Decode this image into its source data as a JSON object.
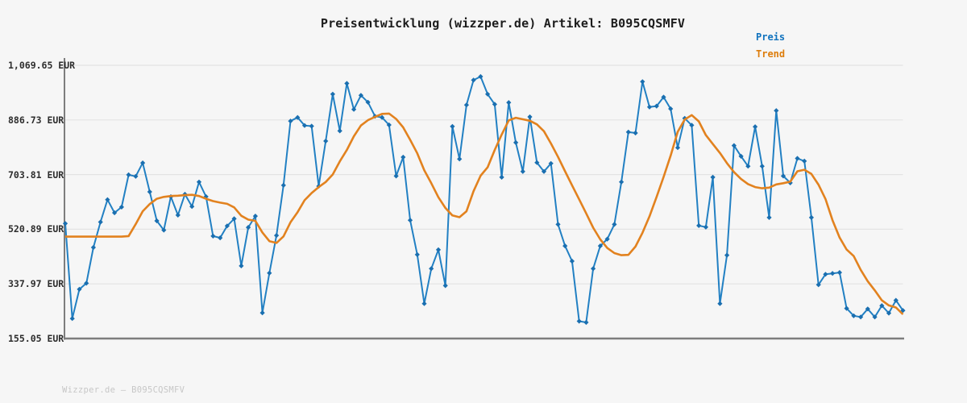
{
  "title": "Preisentwicklung (wizzper.de) Artikel: B095CQSMFV",
  "legend": {
    "preis": "Preis",
    "trend": "Trend"
  },
  "footer": "Wizzper.de — B095CQSMFV",
  "colors": {
    "background": "#f6f6f6",
    "price_line": "#2280c3",
    "price_marker": "#1a6fb0",
    "trend_line": "#e2821f",
    "legend_preis": "#1173be",
    "legend_trend": "#dd7d0c",
    "axis": "#7d7d7d",
    "gridline": "#e3e3e3",
    "title_text": "#1c1c1c",
    "ylabel_text": "#2d2d2d",
    "footer_text": "#c7c7c7"
  },
  "chart_data": {
    "type": "line",
    "title": "Preisentwicklung (wizzper.de) Artikel: B095CQSMFV",
    "currency": "EUR",
    "grid": "horizontal",
    "legend_position": "top-right",
    "x_axis": {
      "tick_labels_visible": false,
      "num_points": 120
    },
    "y_axis": {
      "unit": "EUR",
      "range": [
        155.05,
        1069.65
      ],
      "tick_values": [
        1069.65,
        886.73,
        703.81,
        520.89,
        337.97,
        155.05
      ],
      "tick_labels": [
        "1,069.65 EUR",
        "886.73 EUR",
        "703.81 EUR",
        "520.89 EUR",
        "337.97 EUR",
        "155.05 EUR"
      ]
    },
    "series": [
      {
        "name": "Preis",
        "color": "#2280c3",
        "marker": "diamond",
        "values": [
          540,
          222,
          320,
          340,
          460,
          545,
          620,
          576,
          595,
          703,
          698,
          743,
          646,
          549,
          518,
          630,
          568,
          638,
          597,
          679,
          630,
          498,
          492,
          532,
          556,
          398,
          527,
          565,
          241,
          374,
          500,
          668,
          883,
          895,
          868,
          866,
          665,
          816,
          973,
          850,
          1009,
          922,
          969,
          946,
          899,
          895,
          870,
          699,
          762,
          551,
          436,
          272,
          389,
          452,
          332,
          865,
          756,
          937,
          1020,
          1032,
          973,
          939,
          695,
          945,
          811,
          714,
          897,
          744,
          714,
          741,
          537,
          465,
          414,
          213,
          209,
          389,
          465,
          488,
          537,
          679,
          846,
          843,
          1015,
          930,
          933,
          963,
          924,
          794,
          892,
          869,
          533,
          528,
          695,
          272,
          434,
          801,
          765,
          732,
          864,
          732,
          560,
          918,
          699,
          676,
          758,
          749,
          560,
          335,
          370,
          373,
          376,
          256,
          231,
          227,
          254,
          227,
          265,
          240,
          283,
          249
        ]
      },
      {
        "name": "Trend",
        "color": "#e2821f",
        "marker": "none",
        "values": [
          496,
          496,
          496,
          496,
          496,
          496,
          496,
          496,
          496,
          498,
          538,
          581,
          605,
          623,
          629,
          632,
          633,
          635,
          636,
          632,
          623,
          615,
          610,
          606,
          594,
          566,
          553,
          549,
          510,
          481,
          475,
          497,
          544,
          578,
          618,
          642,
          662,
          679,
          704,
          748,
          786,
          832,
          868,
          886,
          897,
          907,
          908,
          890,
          862,
          820,
          775,
          718,
          675,
          628,
          592,
          567,
          561,
          581,
          648,
          700,
          728,
          786,
          838,
          885,
          894,
          889,
          884,
          872,
          849,
          808,
          763,
          715,
          668,
          621,
          574,
          526,
          487,
          458,
          441,
          434,
          435,
          463,
          509,
          564,
          629,
          696,
          767,
          847,
          888,
          903,
          882,
          836,
          806,
          776,
          742,
          712,
          689,
          672,
          662,
          658,
          660,
          671,
          675,
          680,
          715,
          720,
          706,
          670,
          622,
          551,
          493,
          453,
          431,
          385,
          347,
          316,
          283,
          266,
          259,
          236
        ]
      }
    ]
  }
}
